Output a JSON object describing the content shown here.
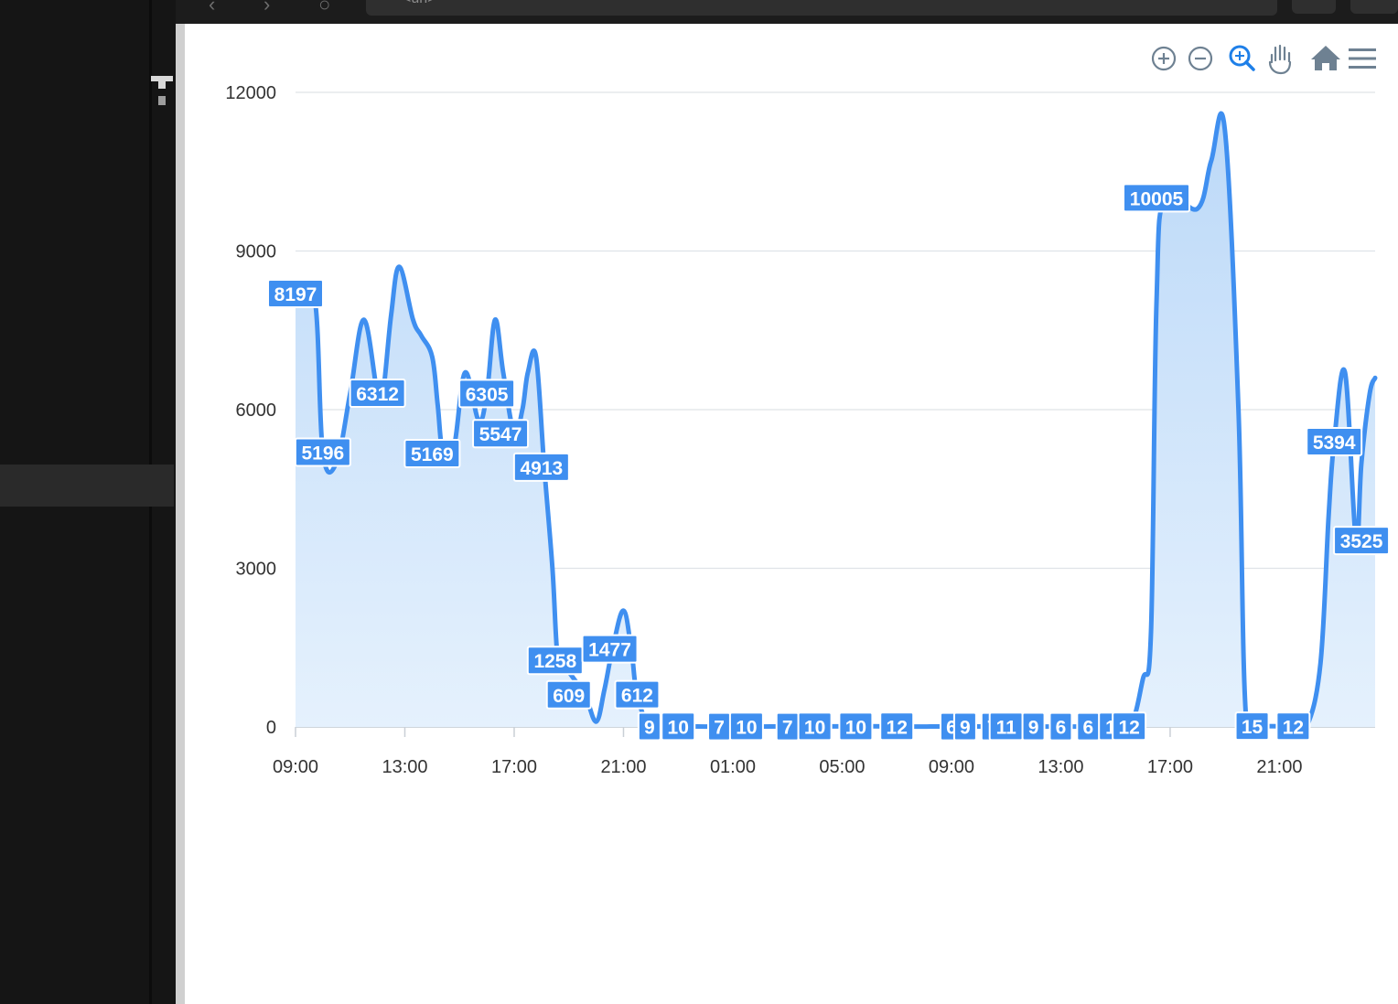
{
  "browser": {
    "url": "<url>"
  },
  "toolbar": {
    "icons": [
      "zoom-in-icon",
      "zoom-out-icon",
      "selection-zoom-icon",
      "pan-icon",
      "reset-zoom-icon",
      "menu-icon"
    ]
  },
  "chart_data": {
    "type": "area",
    "title": "",
    "xlabel": "",
    "ylabel": "",
    "ylim": [
      0,
      12000
    ],
    "y_ticks": [
      "0",
      "3000",
      "6000",
      "9000",
      "12000"
    ],
    "x_ticks": [
      "09:00",
      "13:00",
      "17:00",
      "21:00",
      "01:00",
      "05:00",
      "09:00",
      "13:00",
      "17:00",
      "21:00"
    ],
    "x_tick_hours": [
      9,
      13,
      17,
      21,
      25,
      29,
      33,
      37,
      41,
      45
    ],
    "x_range_hours": [
      9,
      48.5
    ],
    "grid": true,
    "colors": {
      "line": "#3f8ff0",
      "label_bg": "#3f8ff0",
      "label_text": "#ffffff",
      "area_top": "#bcd9f8",
      "area_bottom": "#e5f1fd"
    },
    "series": [
      {
        "points": [
          [
            9.0,
            8197
          ],
          [
            9.7,
            8100
          ],
          [
            10.0,
            5196
          ],
          [
            10.5,
            5000
          ],
          [
            11.0,
            6312
          ],
          [
            11.5,
            7700
          ],
          [
            12.0,
            6300
          ],
          [
            12.2,
            6312
          ],
          [
            12.5,
            7800
          ],
          [
            12.8,
            8700
          ],
          [
            13.3,
            7700
          ],
          [
            13.6,
            7400
          ],
          [
            14.0,
            7000
          ],
          [
            14.2,
            6100
          ],
          [
            14.4,
            5169
          ],
          [
            14.8,
            5300
          ],
          [
            15.2,
            6700
          ],
          [
            15.7,
            5800
          ],
          [
            16.0,
            6305
          ],
          [
            16.3,
            7700
          ],
          [
            16.6,
            6700
          ],
          [
            17.0,
            5547
          ],
          [
            17.3,
            6000
          ],
          [
            17.5,
            6700
          ],
          [
            17.8,
            7000
          ],
          [
            18.1,
            4913
          ],
          [
            18.4,
            3000
          ],
          [
            18.6,
            1258
          ],
          [
            18.9,
            1100
          ],
          [
            19.2,
            900
          ],
          [
            19.6,
            609
          ],
          [
            20.0,
            100
          ],
          [
            20.3,
            700
          ],
          [
            20.6,
            1477
          ],
          [
            21.0,
            2200
          ],
          [
            21.3,
            1400
          ],
          [
            21.5,
            612
          ],
          [
            22.0,
            9
          ],
          [
            23.0,
            10
          ],
          [
            24.0,
            7
          ],
          [
            25.0,
            10
          ],
          [
            26.0,
            7
          ],
          [
            27.0,
            10
          ],
          [
            28.5,
            10
          ],
          [
            30.0,
            12
          ],
          [
            31.5,
            6
          ],
          [
            32.5,
            9
          ],
          [
            33.5,
            7
          ],
          [
            34.5,
            11
          ],
          [
            35.5,
            9
          ],
          [
            36.5,
            6
          ],
          [
            37.5,
            6
          ],
          [
            38.5,
            11
          ],
          [
            39.5,
            12
          ],
          [
            40.0,
            900
          ],
          [
            40.3,
            1800
          ],
          [
            40.5,
            8000
          ],
          [
            40.8,
            10005
          ],
          [
            42.0,
            9800
          ],
          [
            42.5,
            10700
          ],
          [
            43.0,
            11300
          ],
          [
            43.5,
            6000
          ],
          [
            43.8,
            15
          ],
          [
            44.5,
            15
          ],
          [
            45.5,
            12
          ],
          [
            46.0,
            12
          ],
          [
            46.5,
            1200
          ],
          [
            46.8,
            4000
          ],
          [
            47.0,
            5394
          ],
          [
            47.4,
            6700
          ],
          [
            47.8,
            3525
          ],
          [
            48.0,
            5000
          ],
          [
            48.3,
            6300
          ],
          [
            48.5,
            6600
          ]
        ]
      }
    ],
    "data_labels": [
      {
        "x": 9.0,
        "y": 8197,
        "text": "8197"
      },
      {
        "x": 10.0,
        "y": 5196,
        "text": "5196"
      },
      {
        "x": 12.0,
        "y": 6312,
        "text": "6312"
      },
      {
        "x": 14.0,
        "y": 5169,
        "text": "5169"
      },
      {
        "x": 16.0,
        "y": 6305,
        "text": "6305"
      },
      {
        "x": 16.5,
        "y": 5547,
        "text": "5547"
      },
      {
        "x": 18.0,
        "y": 4913,
        "text": "4913"
      },
      {
        "x": 18.5,
        "y": 1258,
        "text": "1258"
      },
      {
        "x": 19.0,
        "y": 609,
        "text": "609"
      },
      {
        "x": 20.5,
        "y": 1477,
        "text": "1477"
      },
      {
        "x": 21.5,
        "y": 612,
        "text": "612"
      },
      {
        "x": 21.95,
        "y": 9,
        "text": "9"
      },
      {
        "x": 23.0,
        "y": 10,
        "text": "10"
      },
      {
        "x": 24.5,
        "y": 7,
        "text": "7"
      },
      {
        "x": 25.5,
        "y": 10,
        "text": "10"
      },
      {
        "x": 27.0,
        "y": 7,
        "text": "7"
      },
      {
        "x": 28.0,
        "y": 10,
        "text": "10"
      },
      {
        "x": 29.5,
        "y": 10,
        "text": "10"
      },
      {
        "x": 31.0,
        "y": 12,
        "text": "12"
      },
      {
        "x": 33.0,
        "y": 6,
        "text": "6"
      },
      {
        "x": 33.5,
        "y": 9,
        "text": "9"
      },
      {
        "x": 34.5,
        "y": 7,
        "text": "7"
      },
      {
        "x": 35.0,
        "y": 11,
        "text": "11"
      },
      {
        "x": 36.0,
        "y": 9,
        "text": "9"
      },
      {
        "x": 37.0,
        "y": 6,
        "text": "6"
      },
      {
        "x": 38.0,
        "y": 6,
        "text": "6"
      },
      {
        "x": 39.0,
        "y": 11,
        "text": "11"
      },
      {
        "x": 39.5,
        "y": 12,
        "text": "12"
      },
      {
        "x": 40.5,
        "y": 10005,
        "text": "10005"
      },
      {
        "x": 44.0,
        "y": 15,
        "text": "15"
      },
      {
        "x": 45.5,
        "y": 12,
        "text": "12"
      },
      {
        "x": 47.0,
        "y": 5394,
        "text": "5394"
      },
      {
        "x": 48.0,
        "y": 3525,
        "text": "3525"
      }
    ]
  }
}
